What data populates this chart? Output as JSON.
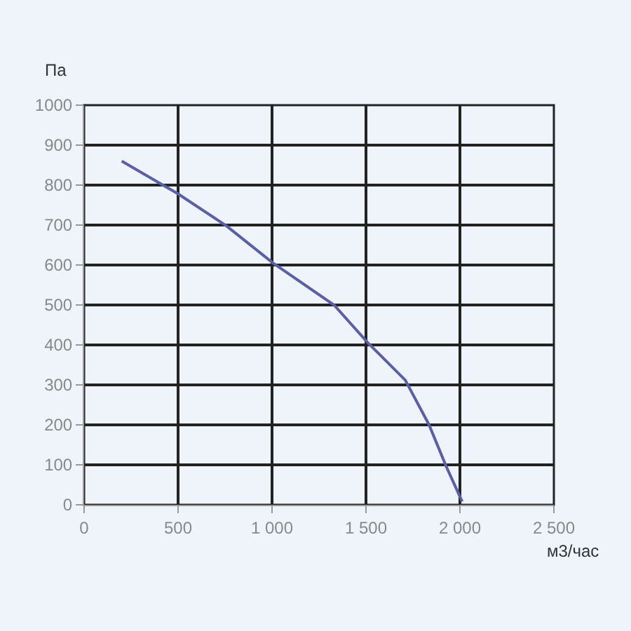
{
  "chart_data": {
    "type": "line",
    "xlabel": "м3/час",
    "ylabel": "Па",
    "x": [
      200,
      500,
      757,
      1005,
      1330,
      1509,
      1709,
      1835,
      1927,
      2012
    ],
    "series": [
      {
        "color": "#5a5fa8",
        "values": [
          860,
          778,
          698,
          605,
          500,
          406,
          312,
          201,
          96,
          8
        ]
      }
    ],
    "xlim": [
      0,
      2500
    ],
    "ylim": [
      0,
      1000
    ],
    "xticks": [
      0,
      500,
      {
        "value": 1000,
        "label": "1 000"
      },
      {
        "value": 1500,
        "label": "1 500"
      },
      {
        "value": 2000,
        "label": "2 000"
      },
      {
        "value": 2500,
        "label": "2 500"
      }
    ],
    "yticks": [
      0,
      100,
      200,
      300,
      400,
      500,
      600,
      700,
      800,
      900,
      1000
    ],
    "grid": true,
    "marker": "none",
    "line_style": "solid"
  }
}
